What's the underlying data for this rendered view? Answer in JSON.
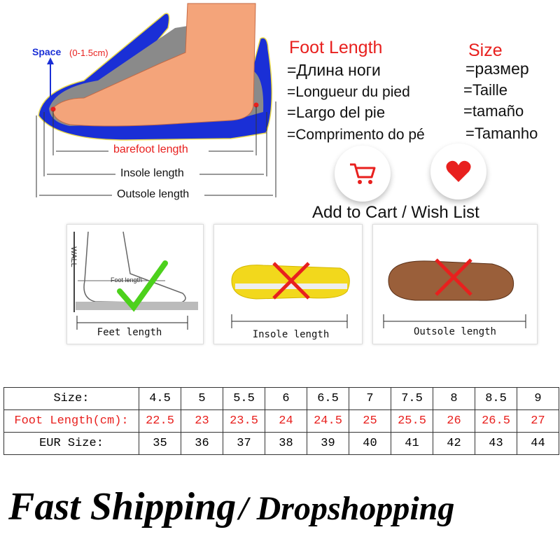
{
  "diagram": {
    "space_label": "Space",
    "space_range": "(0-1.5cm)",
    "barefoot_length": "barefoot length",
    "insole_length": "Insole length",
    "outsole_length": "Outsole length"
  },
  "foot_length": {
    "title": "Foot Length",
    "translations": [
      "=Длина ноги",
      "=Longueur du pied",
      "=Largo del pie",
      "=Comprimento do pé"
    ]
  },
  "size": {
    "title": "Size",
    "translations": [
      "=размер",
      "=Taille",
      "=tamaño",
      "=Tamanho"
    ]
  },
  "actions": {
    "cart_icon": "shopping-cart-icon",
    "wish_icon": "heart-icon",
    "caption": "Add to Cart / Wish List"
  },
  "panels": [
    {
      "label": "Feet length",
      "mark": "check",
      "wall": "WALL",
      "inner": "Foot length"
    },
    {
      "label": "Insole length",
      "mark": "cross"
    },
    {
      "label": "Outsole length",
      "mark": "cross"
    }
  ],
  "colors": {
    "accent_red": "#e8201e",
    "diagram_blue": "#1a2fd6",
    "check_green": "#4cd11c"
  },
  "size_table": {
    "rows": [
      {
        "label": "Size:",
        "values": [
          "4.5",
          "5",
          "5.5",
          "6",
          "6.5",
          "7",
          "7.5",
          "8",
          "8.5",
          "9"
        ]
      },
      {
        "label": "Foot Length(cm):",
        "values": [
          "22.5",
          "23",
          "23.5",
          "24",
          "24.5",
          "25",
          "25.5",
          "26",
          "26.5",
          "27"
        ]
      },
      {
        "label": "EUR Size:",
        "values": [
          "35",
          "36",
          "37",
          "38",
          "39",
          "40",
          "41",
          "42",
          "43",
          "44"
        ]
      }
    ]
  },
  "banner": {
    "part1": "Fast Shipping",
    "part2": "/ Dropshopping"
  }
}
